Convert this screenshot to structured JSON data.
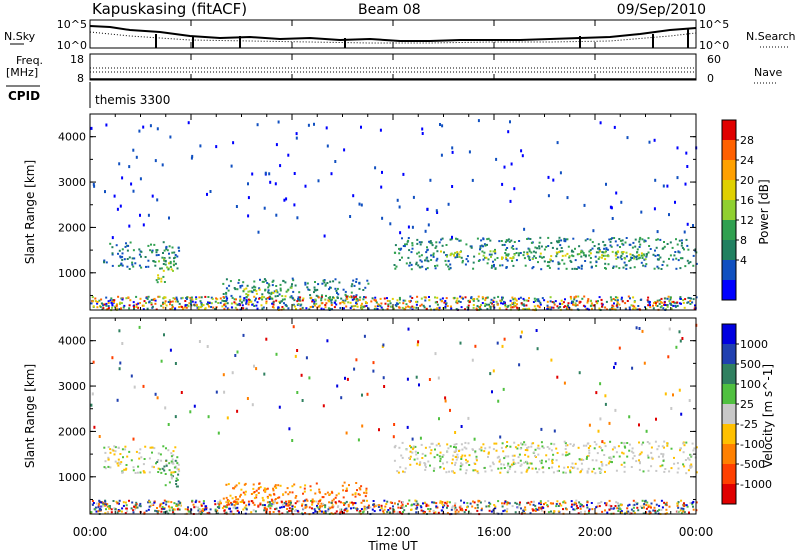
{
  "header": {
    "station": "Kapuskasing (fitACF)",
    "beam": "Beam 08",
    "date": "09/Sep/2010"
  },
  "noise_panel": {
    "left_label": "N.Sky",
    "left_ticks": [
      "10^5",
      "10^0"
    ],
    "right_label": "N.Search",
    "right_ticks": [
      "10^5",
      "10^0"
    ]
  },
  "freq_panel": {
    "left_label_1": "Freq.",
    "left_label_2": "[MHz]",
    "left_ticks": [
      "18",
      "8"
    ],
    "right_label": "Nave",
    "right_ticks": [
      "60",
      "0"
    ]
  },
  "cpid": {
    "label": "CPID",
    "value": "themis 3300"
  },
  "chart_data": [
    {
      "type": "heatmap",
      "name": "power",
      "ylabel": "Slant Range [km]",
      "yticks": [
        "4000",
        "3000",
        "2000",
        "1000"
      ],
      "colorbar_label": "Power [dB]",
      "colorbar_ticks": [
        "28",
        "24",
        "20",
        "16",
        "12",
        "8",
        "4"
      ],
      "colorscale": [
        "#e00000",
        "#ff6000",
        "#ffa000",
        "#e0d000",
        "#90d030",
        "#30a050",
        "#208060",
        "#1050c0",
        "#0000ff"
      ],
      "xlim": [
        "00:00",
        "24:00"
      ],
      "ylim": [
        180,
        4500
      ],
      "echo_regions": [
        {
          "t_start": 0.5,
          "t_end": 3.5,
          "range_start": 1100,
          "range_end": 1700,
          "power_db": 12
        },
        {
          "t_start": 2.6,
          "t_end": 3.3,
          "range_start": 800,
          "range_end": 1400,
          "power_db": 20
        },
        {
          "t_start": 5.2,
          "t_end": 11.0,
          "range_start": 400,
          "range_end": 900,
          "power_db": 12
        },
        {
          "t_start": 6.0,
          "t_end": 8.0,
          "range_start": 500,
          "range_end": 700,
          "power_db": 20
        },
        {
          "t_start": 12.0,
          "t_end": 24.0,
          "range_start": 1100,
          "range_end": 1800,
          "power_db": 10
        },
        {
          "t_start": 13.5,
          "t_end": 22.0,
          "range_start": 1300,
          "range_end": 1500,
          "power_db": 18
        }
      ]
    },
    {
      "type": "heatmap",
      "name": "velocity",
      "ylabel": "Slant Range [km]",
      "yticks": [
        "4000",
        "3000",
        "2000",
        "1000"
      ],
      "colorbar_label": "Velocity [m s^-1]",
      "colorbar_ticks": [
        "1000",
        "500",
        "100",
        "25",
        "-25",
        "-100",
        "-500",
        "-1000"
      ],
      "colorscale": [
        "#0000e0",
        "#2040b0",
        "#308060",
        "#50c040",
        "#c8c8c8",
        "#ffc000",
        "#ff8000",
        "#ff4000",
        "#e00000"
      ],
      "xlim": [
        "00:00",
        "24:00"
      ],
      "ylim": [
        180,
        4500
      ],
      "echo_regions": [
        {
          "t_start": 0.5,
          "t_end": 3.5,
          "range_start": 1100,
          "range_end": 1700,
          "velocity": 0
        },
        {
          "t_start": 2.6,
          "t_end": 3.5,
          "range_start": 800,
          "range_end": 1400,
          "velocity": 150
        },
        {
          "t_start": 5.2,
          "t_end": 11.0,
          "range_start": 400,
          "range_end": 900,
          "velocity": -150
        },
        {
          "t_start": 12.0,
          "t_end": 24.0,
          "range_start": 1100,
          "range_end": 1800,
          "velocity": 0
        }
      ]
    }
  ],
  "x_axis": {
    "ticks": [
      "00:00",
      "04:00",
      "08:00",
      "12:00",
      "16:00",
      "20:00",
      "00:00"
    ],
    "label": "Time UT"
  }
}
